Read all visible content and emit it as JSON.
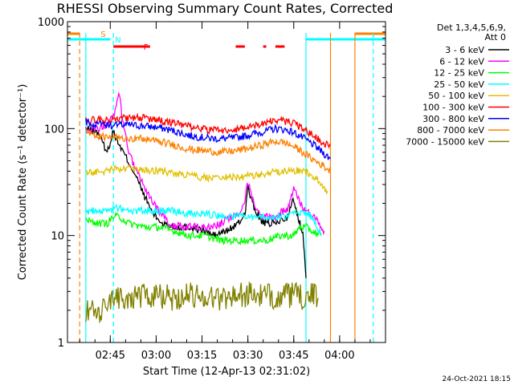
{
  "chart_data": {
    "type": "line",
    "title": "RHESSI Observing Summary Count Rates, Corrected",
    "xlabel": "Start Time (12-Apr-13 02:31:02)",
    "ylabel": "Corrected Count Rate (s⁻¹ detector⁻¹)",
    "x_unit": "minutes since 02:31:02",
    "xlim": [
      0,
      104
    ],
    "ylim": [
      1,
      1000
    ],
    "y_scale": "log",
    "x_ticks": [
      {
        "label": "02:45",
        "x": 14
      },
      {
        "label": "03:00",
        "x": 29
      },
      {
        "label": "03:15",
        "x": 44
      },
      {
        "label": "03:30",
        "x": 59
      },
      {
        "label": "03:45",
        "x": 74
      },
      {
        "label": "04:00",
        "x": 89
      }
    ],
    "y_ticks": [
      {
        "label": "1",
        "v": 1
      },
      {
        "label": "10",
        "v": 10
      },
      {
        "label": "100",
        "v": 100
      },
      {
        "label": "1000",
        "v": 1000
      }
    ],
    "legend_header": [
      "Det 1,3,4,5,6,9,",
      "Att 0"
    ],
    "legend_position": "right",
    "series": [
      {
        "name": "3 - 6 keV",
        "color": "#000000",
        "values": [
          [
            6,
            100
          ],
          [
            10,
            92
          ],
          [
            13,
            60
          ],
          [
            15,
            95
          ],
          [
            17,
            70
          ],
          [
            19,
            55
          ],
          [
            22,
            38
          ],
          [
            25,
            24
          ],
          [
            28,
            16
          ],
          [
            31,
            13
          ],
          [
            35,
            12
          ],
          [
            40,
            12
          ],
          [
            45,
            11
          ],
          [
            48,
            10
          ],
          [
            52,
            11
          ],
          [
            56,
            13
          ],
          [
            58,
            16
          ],
          [
            59,
            28
          ],
          [
            61,
            18
          ],
          [
            64,
            13
          ],
          [
            68,
            13
          ],
          [
            72,
            15
          ],
          [
            74,
            22
          ],
          [
            75,
            16
          ],
          [
            77,
            11
          ],
          [
            78,
            4
          ]
        ]
      },
      {
        "name": "6 - 12 keV",
        "color": "#ff00ff",
        "values": [
          [
            6,
            100
          ],
          [
            10,
            100
          ],
          [
            13,
            110
          ],
          [
            15,
            130
          ],
          [
            17,
            210
          ],
          [
            18,
            120
          ],
          [
            20,
            60
          ],
          [
            23,
            38
          ],
          [
            26,
            25
          ],
          [
            29,
            18
          ],
          [
            33,
            13
          ],
          [
            38,
            12
          ],
          [
            43,
            12
          ],
          [
            48,
            12
          ],
          [
            52,
            14
          ],
          [
            56,
            16
          ],
          [
            58,
            22
          ],
          [
            59,
            32
          ],
          [
            61,
            20
          ],
          [
            64,
            15
          ],
          [
            68,
            15
          ],
          [
            72,
            18
          ],
          [
            74,
            28
          ],
          [
            76,
            20
          ],
          [
            78,
            17
          ],
          [
            81,
            15
          ],
          [
            84,
            11
          ]
        ]
      },
      {
        "name": "12 - 25 keV",
        "color": "#00ff00",
        "values": [
          [
            6,
            14
          ],
          [
            10,
            13
          ],
          [
            13,
            13
          ],
          [
            15,
            15
          ],
          [
            17,
            15
          ],
          [
            20,
            13
          ],
          [
            25,
            12
          ],
          [
            30,
            12
          ],
          [
            35,
            11
          ],
          [
            40,
            10
          ],
          [
            45,
            10
          ],
          [
            50,
            9
          ],
          [
            55,
            9
          ],
          [
            60,
            9
          ],
          [
            65,
            9
          ],
          [
            70,
            10
          ],
          [
            74,
            10
          ],
          [
            76,
            12
          ],
          [
            78,
            12
          ],
          [
            80,
            11
          ],
          [
            83,
            10
          ]
        ]
      },
      {
        "name": "25 - 50 keV",
        "color": "#00ffff",
        "values": [
          [
            6,
            17
          ],
          [
            10,
            17
          ],
          [
            13,
            17
          ],
          [
            15,
            18
          ],
          [
            17,
            18
          ],
          [
            20,
            17
          ],
          [
            25,
            17
          ],
          [
            30,
            17
          ],
          [
            35,
            17
          ],
          [
            40,
            16
          ],
          [
            45,
            16
          ],
          [
            50,
            15
          ],
          [
            55,
            15
          ],
          [
            60,
            15
          ],
          [
            65,
            15
          ],
          [
            70,
            15
          ],
          [
            75,
            16
          ],
          [
            78,
            16
          ],
          [
            80,
            15
          ],
          [
            83,
            10
          ]
        ]
      },
      {
        "name": "50 - 100 keV",
        "color": "#e0c000",
        "values": [
          [
            6,
            38
          ],
          [
            10,
            40
          ],
          [
            13,
            40
          ],
          [
            16,
            42
          ],
          [
            20,
            42
          ],
          [
            25,
            42
          ],
          [
            30,
            40
          ],
          [
            35,
            38
          ],
          [
            40,
            36
          ],
          [
            45,
            35
          ],
          [
            50,
            35
          ],
          [
            55,
            35
          ],
          [
            60,
            36
          ],
          [
            65,
            38
          ],
          [
            70,
            40
          ],
          [
            74,
            41
          ],
          [
            77,
            40
          ],
          [
            79,
            38
          ],
          [
            81,
            34
          ],
          [
            83,
            30
          ],
          [
            85,
            26
          ]
        ]
      },
      {
        "name": "100 - 300 keV",
        "color": "#ff0000",
        "values": [
          [
            6,
            120
          ],
          [
            10,
            120
          ],
          [
            13,
            122
          ],
          [
            16,
            125
          ],
          [
            20,
            126
          ],
          [
            25,
            125
          ],
          [
            30,
            120
          ],
          [
            35,
            112
          ],
          [
            40,
            104
          ],
          [
            45,
            98
          ],
          [
            50,
            96
          ],
          [
            55,
            98
          ],
          [
            60,
            105
          ],
          [
            65,
            115
          ],
          [
            68,
            120
          ],
          [
            71,
            118
          ],
          [
            74,
            112
          ],
          [
            77,
            100
          ],
          [
            80,
            88
          ],
          [
            82,
            80
          ],
          [
            84,
            72
          ],
          [
            86,
            70
          ]
        ]
      },
      {
        "name": "300 - 800 keV",
        "color": "#0000ff",
        "values": [
          [
            6,
            115
          ],
          [
            10,
            110
          ],
          [
            13,
            108
          ],
          [
            16,
            108
          ],
          [
            20,
            108
          ],
          [
            25,
            106
          ],
          [
            30,
            102
          ],
          [
            35,
            95
          ],
          [
            40,
            86
          ],
          [
            45,
            82
          ],
          [
            50,
            80
          ],
          [
            55,
            82
          ],
          [
            60,
            88
          ],
          [
            65,
            95
          ],
          [
            68,
            100
          ],
          [
            71,
            98
          ],
          [
            74,
            92
          ],
          [
            77,
            82
          ],
          [
            80,
            72
          ],
          [
            82,
            65
          ],
          [
            84,
            58
          ],
          [
            86,
            52
          ]
        ]
      },
      {
        "name": "800 - 7000 keV",
        "color": "#ff8000",
        "values": [
          [
            6,
            92
          ],
          [
            10,
            85
          ],
          [
            13,
            82
          ],
          [
            16,
            82
          ],
          [
            20,
            82
          ],
          [
            25,
            80
          ],
          [
            30,
            76
          ],
          [
            35,
            70
          ],
          [
            40,
            64
          ],
          [
            45,
            62
          ],
          [
            50,
            60
          ],
          [
            55,
            62
          ],
          [
            60,
            66
          ],
          [
            65,
            72
          ],
          [
            68,
            76
          ],
          [
            71,
            74
          ],
          [
            74,
            68
          ],
          [
            77,
            60
          ],
          [
            80,
            52
          ],
          [
            82,
            48
          ],
          [
            84,
            44
          ],
          [
            86,
            40
          ]
        ]
      },
      {
        "name": "7000 - 15000 keV",
        "color": "#808000",
        "values": [
          [
            6,
            2
          ],
          [
            10,
            1.8
          ],
          [
            13,
            2.2
          ],
          [
            16,
            2.6
          ],
          [
            20,
            2.6
          ],
          [
            25,
            2.8
          ],
          [
            30,
            2.7
          ],
          [
            35,
            2.6
          ],
          [
            40,
            2.8
          ],
          [
            45,
            2.7
          ],
          [
            50,
            2.6
          ],
          [
            55,
            2.8
          ],
          [
            60,
            2.8
          ],
          [
            65,
            2.7
          ],
          [
            70,
            2.7
          ],
          [
            74,
            2.8
          ],
          [
            77,
            2.6
          ],
          [
            80,
            2.8
          ],
          [
            82,
            2.6
          ]
        ]
      }
    ],
    "flags": [
      {
        "label": "S",
        "color": "#ff8000",
        "segments": [
          [
            0,
            4
          ],
          [
            94,
            104
          ]
        ]
      },
      {
        "label": "N",
        "color": "#00ffff",
        "segments": [
          [
            0,
            14
          ],
          [
            78,
            104
          ]
        ]
      },
      {
        "label": "F",
        "color": "#ff0000",
        "segments": [
          [
            15,
            27
          ],
          [
            55,
            58
          ],
          [
            64,
            65
          ],
          [
            68,
            71
          ]
        ]
      }
    ],
    "vertical_lines": [
      {
        "x": 4,
        "color": "#ff8000",
        "style": "dashed"
      },
      {
        "x": 6,
        "color": "#00ffff",
        "style": "solid"
      },
      {
        "x": 15,
        "color": "#00ffff",
        "style": "dashed"
      },
      {
        "x": 78,
        "color": "#00ffff",
        "style": "solid"
      },
      {
        "x": 86,
        "color": "#ff8000",
        "style": "solid"
      },
      {
        "x": 94,
        "color": "#ff8000",
        "style": "solid"
      },
      {
        "x": 100,
        "color": "#00ffff",
        "style": "dashed"
      }
    ]
  },
  "footer": {
    "date": "24-Oct-2021 18:15"
  }
}
